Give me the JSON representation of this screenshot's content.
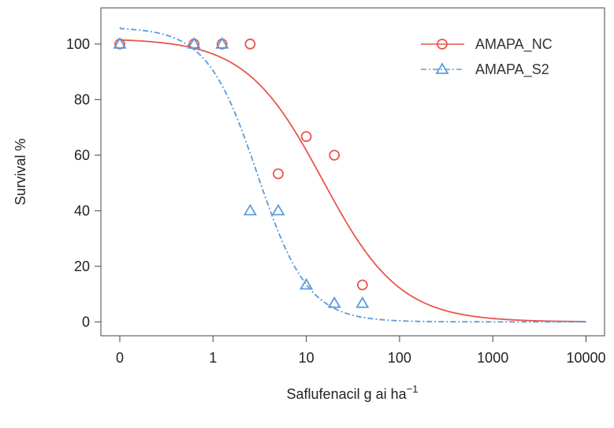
{
  "chart_data": {
    "type": "scatter",
    "xlabel": "Saflufenacil g ai ha",
    "xlabel_superscript": "−1",
    "ylabel": "Survival %",
    "x_scale": "log (0 shown at left)",
    "x_tick_labels": [
      "0",
      "1",
      "10",
      "100",
      "1000",
      "10000"
    ],
    "x_ticks": [
      0,
      1,
      10,
      100,
      1000,
      10000
    ],
    "y_ticks": [
      0,
      20,
      40,
      60,
      80,
      100
    ],
    "ylim": [
      -5,
      113
    ],
    "grid": false,
    "legend_position": "top-right",
    "series": [
      {
        "name": "AMAPA_NC",
        "color": "#e8574c",
        "marker": "circle",
        "line_style": "solid",
        "points": [
          {
            "x": 0,
            "y": 100
          },
          {
            "x": 0.625,
            "y": 100
          },
          {
            "x": 1.25,
            "y": 100
          },
          {
            "x": 2.5,
            "y": 100
          },
          {
            "x": 5,
            "y": 53.3
          },
          {
            "x": 10,
            "y": 66.7
          },
          {
            "x": 20,
            "y": 60
          },
          {
            "x": 40,
            "y": 13.3
          }
        ],
        "fit": {
          "model": "log-logistic",
          "upper": 102,
          "ec50": 15,
          "slope": 1.05
        }
      },
      {
        "name": "AMAPA_S2",
        "color": "#5b9bdc",
        "marker": "triangle",
        "line_style": "dot-dash",
        "points": [
          {
            "x": 0,
            "y": 100
          },
          {
            "x": 0.625,
            "y": 100
          },
          {
            "x": 1.25,
            "y": 100
          },
          {
            "x": 2.5,
            "y": 40
          },
          {
            "x": 5,
            "y": 40
          },
          {
            "x": 10,
            "y": 13.3
          },
          {
            "x": 20,
            "y": 6.7
          },
          {
            "x": 40,
            "y": 6.7
          }
        ],
        "fit": {
          "model": "log-logistic",
          "upper": 106,
          "ec50": 3,
          "slope": 1.6
        }
      }
    ]
  }
}
